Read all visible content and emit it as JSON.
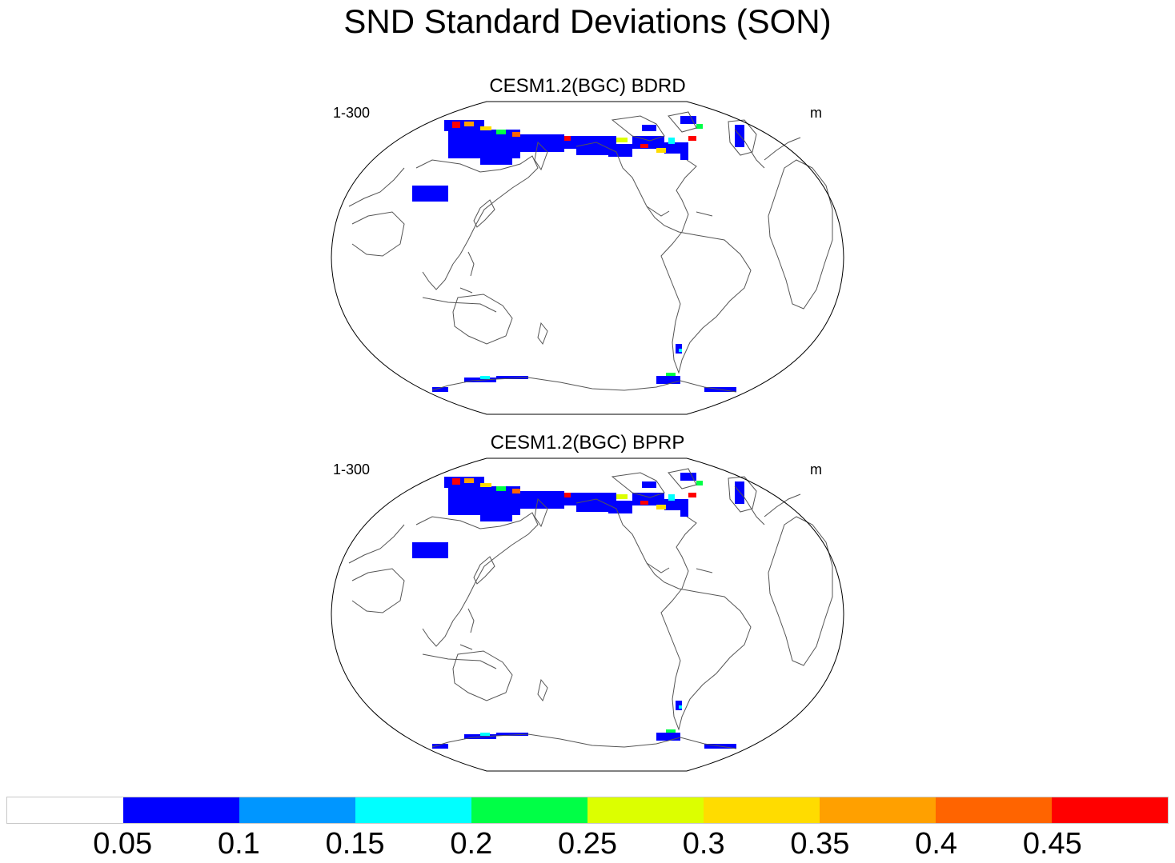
{
  "figure": {
    "title": "SND Standard Deviations (SON)"
  },
  "panels": [
    {
      "title": "CESM1.2(BGC) BDRD",
      "left_label": "1-300",
      "right_label": "m"
    },
    {
      "title": "CESM1.2(BGC) BPRP",
      "left_label": "1-300",
      "right_label": "m"
    }
  ],
  "colorbar": {
    "colors": [
      "#ffffff",
      "#0000ff",
      "#0096ff",
      "#00ffff",
      "#00ff46",
      "#dcff00",
      "#ffdc00",
      "#ffa000",
      "#ff6400",
      "#ff0000"
    ],
    "labels": [
      "0.05",
      "0.1",
      "0.15",
      "0.2",
      "0.25",
      "0.3",
      "0.35",
      "0.4",
      "0.45"
    ]
  }
}
